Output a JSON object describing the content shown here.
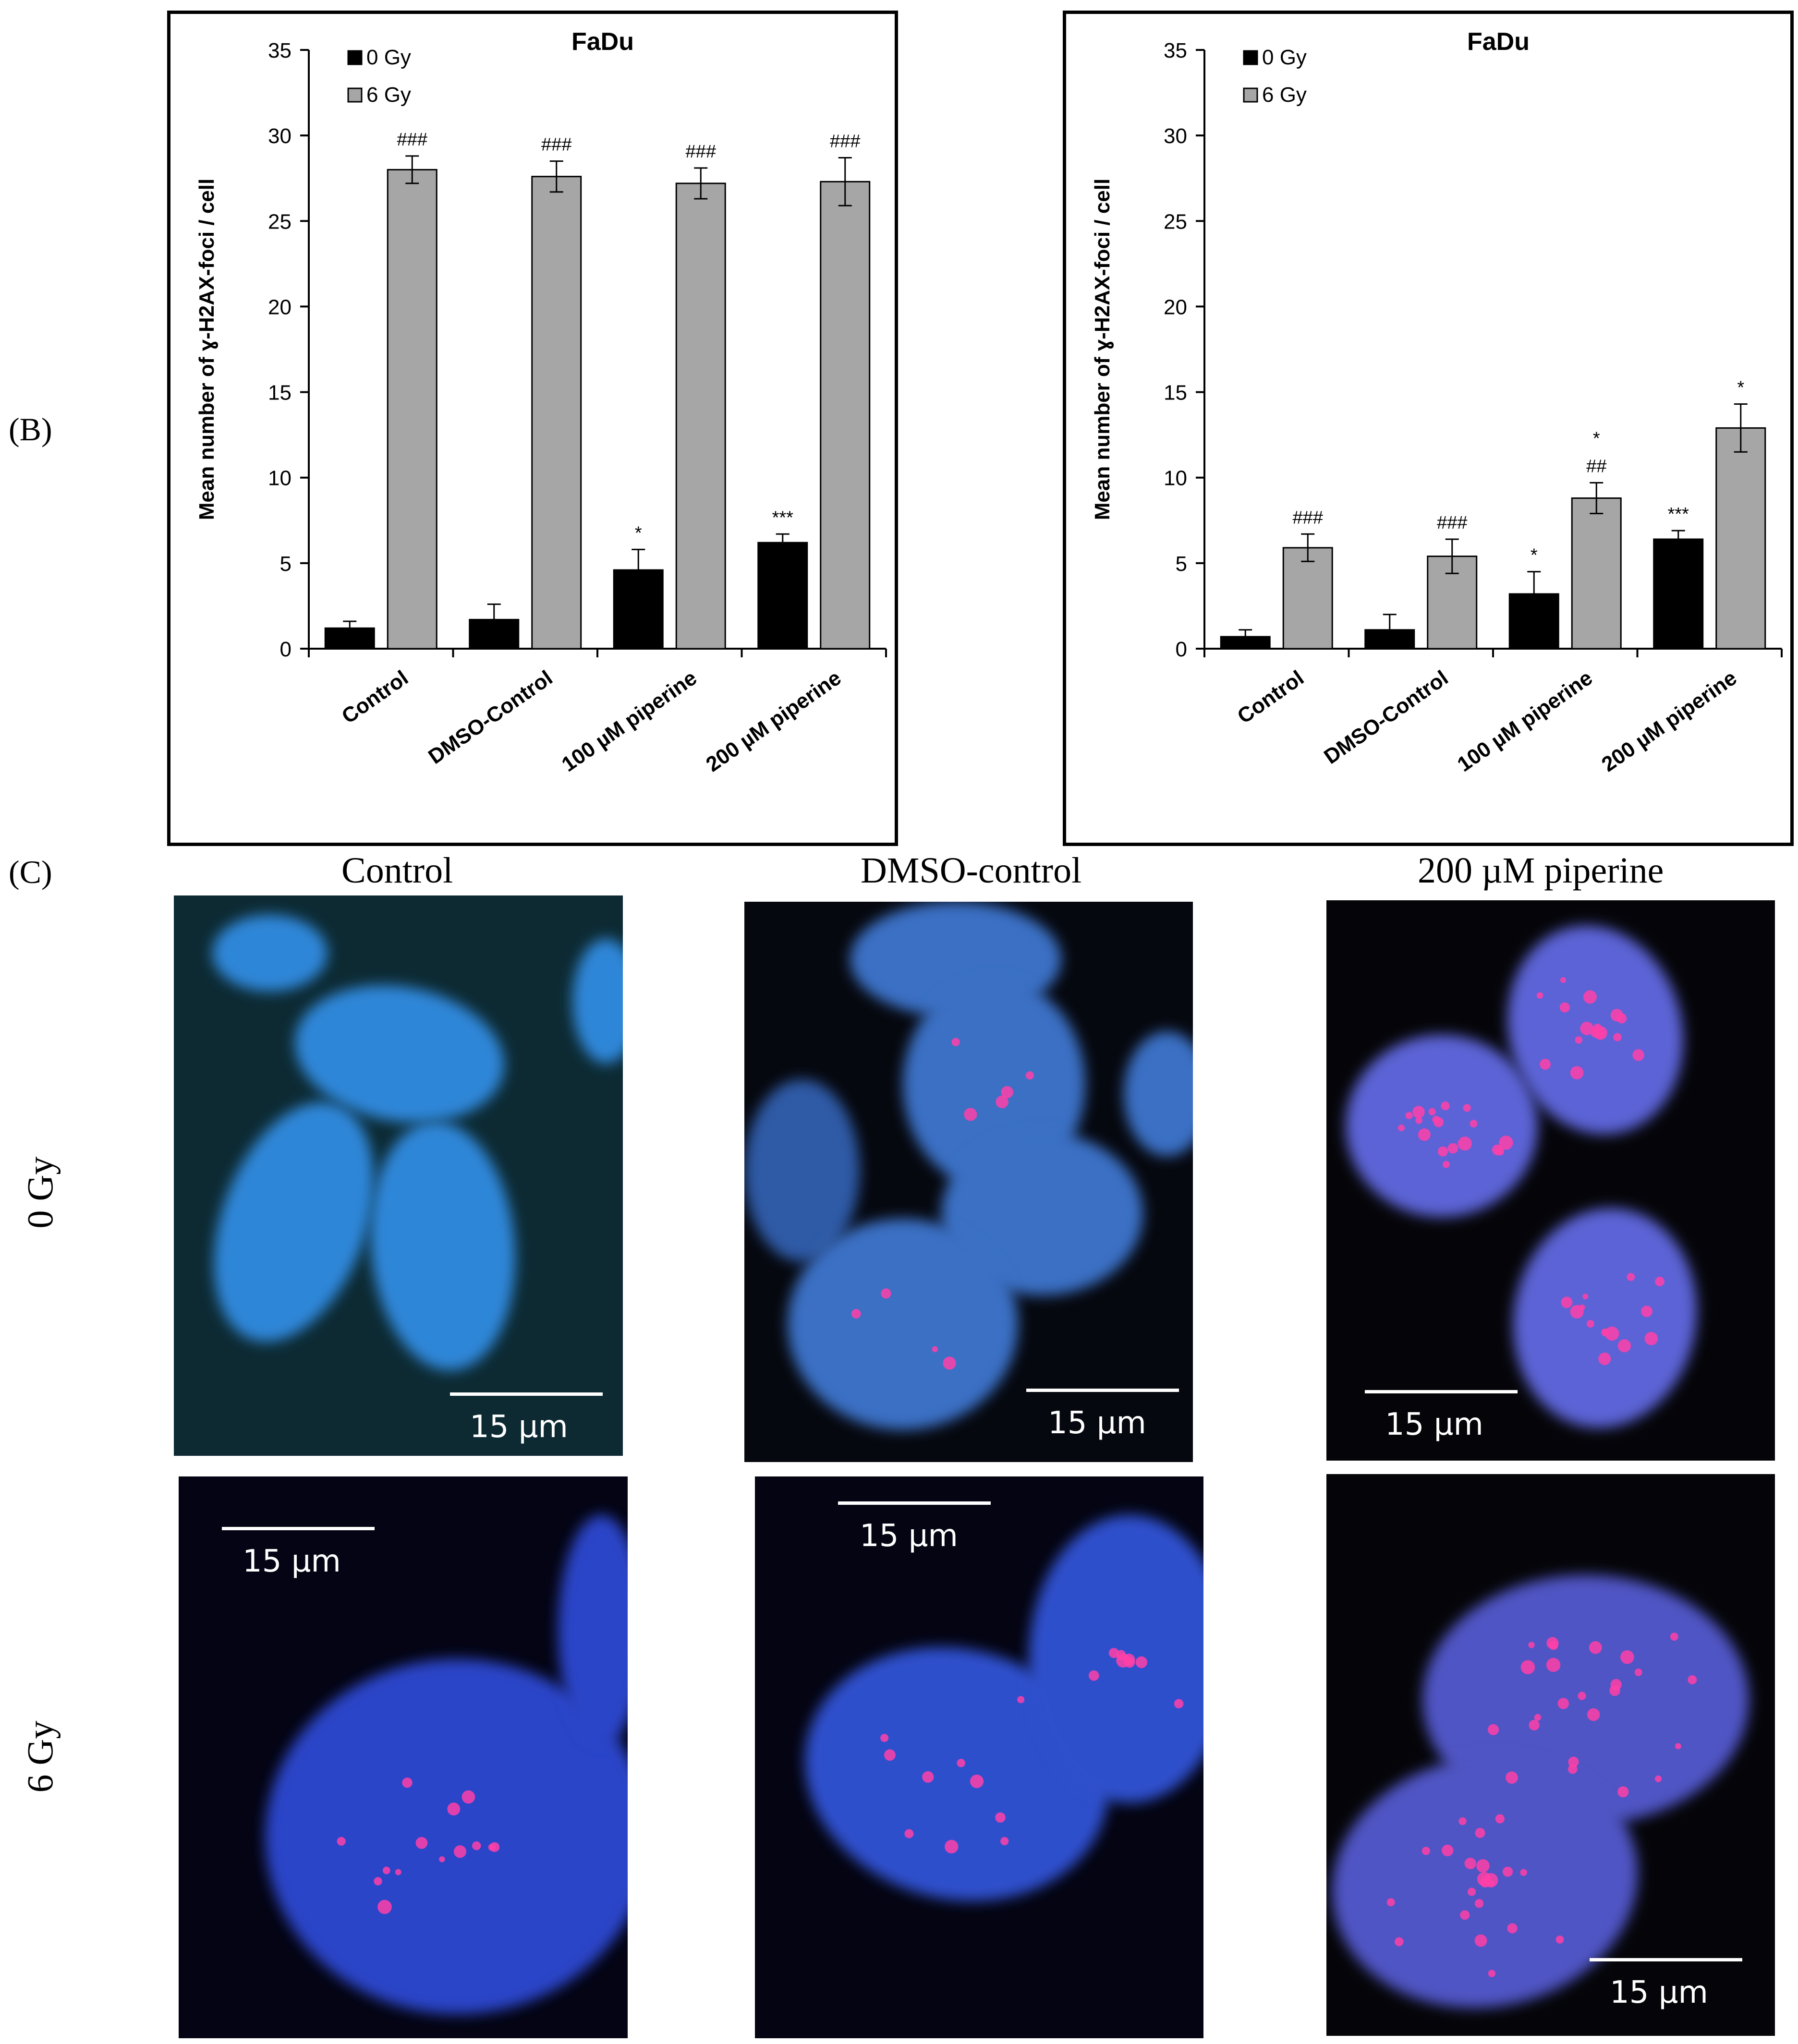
{
  "panel_labels": {
    "B": "(B)",
    "C": "(C)"
  },
  "chart_data": [
    {
      "type": "bar",
      "title": "FaDu",
      "ylabel": "Mean number of ɣ-H2AX-foci / cell",
      "xlabel": "",
      "ylim": [
        0,
        35
      ],
      "yticks": [
        0,
        5,
        10,
        15,
        20,
        25,
        30,
        35
      ],
      "categories": [
        "Control",
        "DMSO-Control",
        "100 µM piperine",
        "200 µM piperine"
      ],
      "legend_position": "top-left",
      "series": [
        {
          "name": "0 Gy",
          "color": "#000000",
          "values": [
            1.2,
            1.7,
            4.6,
            6.2
          ],
          "errors": [
            0.4,
            0.9,
            1.2,
            0.5
          ],
          "annotations": [
            "",
            "",
            "*",
            "***"
          ]
        },
        {
          "name": "6 Gy",
          "color": "#a6a6a6",
          "values": [
            28.0,
            27.6,
            27.2,
            27.3
          ],
          "errors": [
            0.8,
            0.9,
            0.9,
            1.4
          ],
          "annotations": [
            "###",
            "###",
            "###",
            "###"
          ]
        }
      ]
    },
    {
      "type": "bar",
      "title": "FaDu",
      "ylabel": "Mean number of ɣ-H2AX-foci / cell",
      "xlabel": "",
      "ylim": [
        0,
        35
      ],
      "yticks": [
        0,
        5,
        10,
        15,
        20,
        25,
        30,
        35
      ],
      "categories": [
        "Control",
        "DMSO-Control",
        "100 µM piperine",
        "200 µM piperine"
      ],
      "legend_position": "top-left",
      "series": [
        {
          "name": "0 Gy",
          "color": "#000000",
          "values": [
            0.7,
            1.1,
            3.2,
            6.4
          ],
          "errors": [
            0.4,
            0.9,
            1.3,
            0.5
          ],
          "annotations": [
            "",
            "",
            "*",
            "***"
          ]
        },
        {
          "name": "6 Gy",
          "color": "#a6a6a6",
          "values": [
            5.9,
            5.4,
            8.8,
            12.9
          ],
          "errors": [
            0.8,
            1.0,
            0.9,
            1.4
          ],
          "annotations": [
            "###",
            "###",
            "*\n##",
            "*"
          ]
        }
      ]
    }
  ],
  "micrographs": {
    "column_titles": [
      "Control",
      "DMSO-control",
      "200 µM piperine"
    ],
    "row_titles": [
      "0 Gy",
      "6 Gy"
    ],
    "scale_bar_label": "15 µm"
  }
}
